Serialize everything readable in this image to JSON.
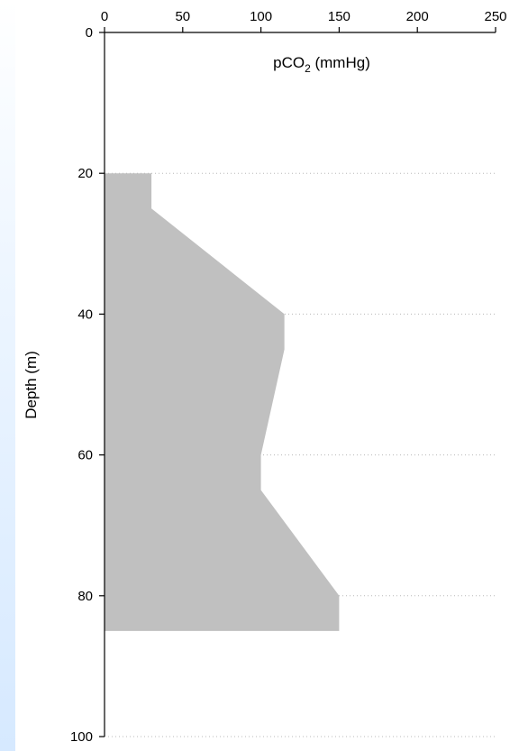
{
  "chart_data": {
    "type": "area",
    "orientation": "vertical-profile",
    "xlabel_main": "pCO",
    "xlabel_sub": "2",
    "xlabel_unit": " (mmHg)",
    "ylabel": "Depth (m)",
    "xlim": [
      0,
      250
    ],
    "ylim": [
      0,
      100
    ],
    "y_inverted": true,
    "x_axis_position": "top",
    "x_ticks": [
      0,
      50,
      100,
      150,
      200,
      250
    ],
    "y_ticks": [
      0,
      20,
      40,
      60,
      80,
      100
    ],
    "grid": "dotted horizontal at y ticks",
    "fill_color": "#c0c0c0",
    "profile": [
      {
        "depth": 20,
        "pco2": 30
      },
      {
        "depth": 25,
        "pco2": 30
      },
      {
        "depth": 40,
        "pco2": 115
      },
      {
        "depth": 45,
        "pco2": 115
      },
      {
        "depth": 60,
        "pco2": 100
      },
      {
        "depth": 65,
        "pco2": 100
      },
      {
        "depth": 80,
        "pco2": 150
      },
      {
        "depth": 85,
        "pco2": 150
      }
    ]
  }
}
